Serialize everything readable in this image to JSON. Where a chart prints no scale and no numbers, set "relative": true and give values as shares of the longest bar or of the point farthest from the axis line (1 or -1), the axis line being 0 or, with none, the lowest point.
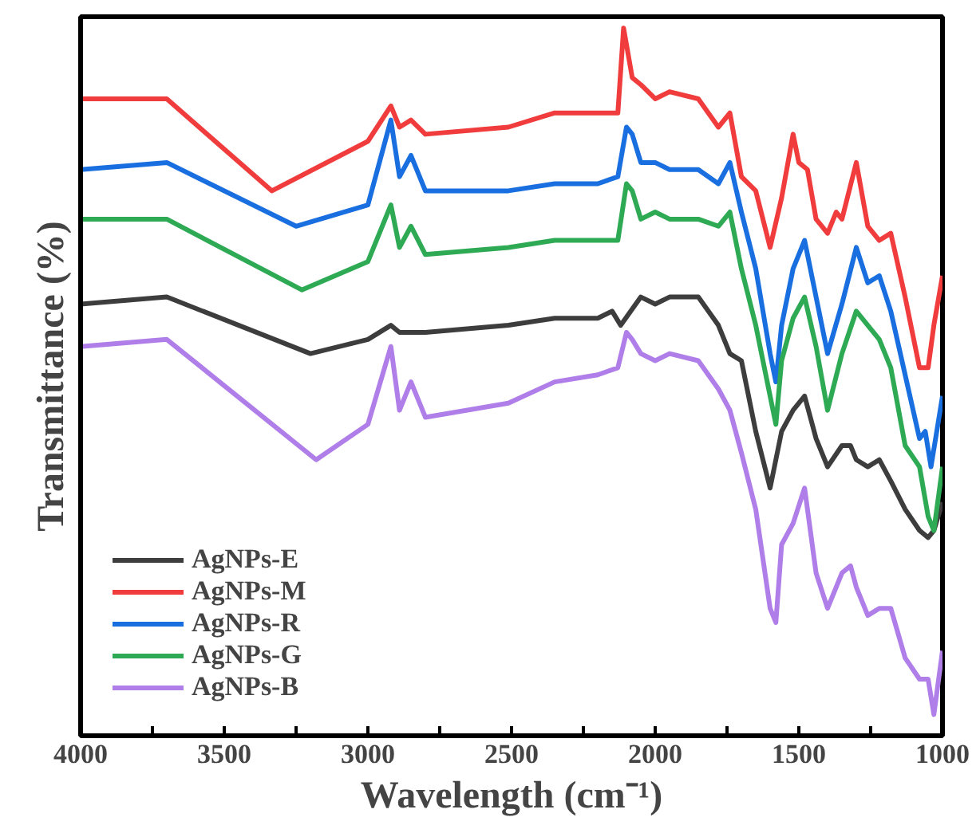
{
  "chart_data": {
    "type": "line",
    "relative": true,
    "xlabel": "Wavelength (cm⁻¹)",
    "ylabel": "Transmittance (%)",
    "xlim": [
      4000,
      1000
    ],
    "xticks": [
      4000,
      {
        "value": 3750,
        "label": null
      },
      3500,
      {
        "value": 3250,
        "label": null
      },
      3000,
      {
        "value": 2750,
        "label": null
      },
      2500,
      {
        "value": 2250,
        "label": null
      },
      2000,
      {
        "value": 1750,
        "label": null
      },
      1500,
      {
        "value": 1250,
        "label": null
      },
      1000
    ],
    "legend": "bottom left",
    "grid": false,
    "line_style": "solid",
    "marker": "none",
    "series": [
      {
        "name": "AgNPs-E",
        "color": "#3d3d3d",
        "x": [
          4000,
          3700,
          3200,
          3000,
          2920,
          2890,
          2850,
          2800,
          2511,
          2350,
          2200,
          2150,
          2120,
          2050,
          2000,
          1950,
          1850,
          1780,
          1740,
          1700,
          1650,
          1600,
          1560,
          1520,
          1480,
          1440,
          1400,
          1350,
          1320,
          1300,
          1260,
          1220,
          1180,
          1130,
          1080,
          1050,
          1030,
          1000
        ],
        "values": [
          0.61,
          0.62,
          0.54,
          0.56,
          0.58,
          0.57,
          0.57,
          0.57,
          0.58,
          0.59,
          0.59,
          0.6,
          0.58,
          0.62,
          0.61,
          0.62,
          0.62,
          0.58,
          0.54,
          0.53,
          0.43,
          0.35,
          0.43,
          0.46,
          0.48,
          0.42,
          0.38,
          0.41,
          0.41,
          0.39,
          0.38,
          0.39,
          0.36,
          0.32,
          0.29,
          0.28,
          0.29,
          0.33
        ]
      },
      {
        "name": "AgNPs-M",
        "color": "#f03c3c",
        "x": [
          4000,
          3700,
          3334,
          3000,
          2920,
          2890,
          2850,
          2800,
          2511,
          2350,
          2200,
          2130,
          2110,
          2080,
          2050,
          2000,
          1950,
          1850,
          1780,
          1740,
          1700,
          1650,
          1600,
          1560,
          1520,
          1500,
          1470,
          1440,
          1400,
          1370,
          1350,
          1300,
          1260,
          1220,
          1180,
          1130,
          1080,
          1050,
          1030,
          1000
        ],
        "values": [
          0.9,
          0.9,
          0.77,
          0.84,
          0.89,
          0.86,
          0.87,
          0.85,
          0.86,
          0.88,
          0.88,
          0.88,
          1.0,
          0.93,
          0.92,
          0.9,
          0.91,
          0.9,
          0.86,
          0.88,
          0.79,
          0.77,
          0.69,
          0.76,
          0.85,
          0.81,
          0.8,
          0.73,
          0.71,
          0.74,
          0.73,
          0.81,
          0.72,
          0.7,
          0.71,
          0.62,
          0.52,
          0.52,
          0.58,
          0.65
        ]
      },
      {
        "name": "AgNPs-R",
        "color": "#1a6fe0",
        "x": [
          4000,
          3700,
          3250,
          3000,
          2920,
          2890,
          2850,
          2800,
          2511,
          2350,
          2200,
          2130,
          2100,
          2080,
          2050,
          2000,
          1950,
          1850,
          1780,
          1740,
          1700,
          1650,
          1600,
          1580,
          1560,
          1520,
          1480,
          1440,
          1400,
          1350,
          1300,
          1260,
          1220,
          1180,
          1130,
          1080,
          1060,
          1040,
          1000
        ],
        "values": [
          0.8,
          0.81,
          0.72,
          0.75,
          0.87,
          0.79,
          0.82,
          0.77,
          0.77,
          0.78,
          0.78,
          0.79,
          0.86,
          0.85,
          0.81,
          0.81,
          0.8,
          0.8,
          0.78,
          0.81,
          0.74,
          0.66,
          0.54,
          0.5,
          0.58,
          0.66,
          0.7,
          0.62,
          0.54,
          0.61,
          0.69,
          0.64,
          0.65,
          0.6,
          0.51,
          0.42,
          0.43,
          0.38,
          0.48
        ]
      },
      {
        "name": "AgNPs-G",
        "color": "#2eaa55",
        "x": [
          4000,
          3700,
          3230,
          3000,
          2920,
          2890,
          2850,
          2800,
          2511,
          2350,
          2200,
          2130,
          2100,
          2080,
          2050,
          2000,
          1950,
          1850,
          1780,
          1740,
          1700,
          1650,
          1600,
          1580,
          1560,
          1520,
          1480,
          1440,
          1400,
          1350,
          1300,
          1260,
          1220,
          1180,
          1130,
          1080,
          1050,
          1030,
          1000
        ],
        "values": [
          0.73,
          0.73,
          0.63,
          0.67,
          0.75,
          0.69,
          0.72,
          0.68,
          0.69,
          0.7,
          0.7,
          0.7,
          0.78,
          0.77,
          0.73,
          0.74,
          0.73,
          0.73,
          0.72,
          0.74,
          0.66,
          0.58,
          0.48,
          0.44,
          0.53,
          0.59,
          0.62,
          0.55,
          0.46,
          0.54,
          0.6,
          0.58,
          0.56,
          0.52,
          0.41,
          0.38,
          0.31,
          0.29,
          0.38
        ]
      },
      {
        "name": "AgNPs-B",
        "color": "#b07ee8",
        "x": [
          4000,
          3700,
          3180,
          3000,
          2920,
          2890,
          2850,
          2800,
          2511,
          2350,
          2200,
          2130,
          2100,
          2080,
          2050,
          2000,
          1950,
          1850,
          1780,
          1740,
          1700,
          1650,
          1600,
          1580,
          1560,
          1520,
          1480,
          1440,
          1400,
          1350,
          1320,
          1300,
          1260,
          1220,
          1180,
          1130,
          1080,
          1050,
          1030,
          1000
        ],
        "values": [
          0.55,
          0.56,
          0.39,
          0.44,
          0.55,
          0.46,
          0.5,
          0.45,
          0.47,
          0.5,
          0.51,
          0.52,
          0.57,
          0.56,
          0.54,
          0.53,
          0.54,
          0.53,
          0.49,
          0.46,
          0.4,
          0.32,
          0.18,
          0.16,
          0.27,
          0.3,
          0.35,
          0.23,
          0.18,
          0.23,
          0.24,
          0.21,
          0.17,
          0.18,
          0.18,
          0.11,
          0.08,
          0.08,
          0.03,
          0.12
        ]
      }
    ]
  }
}
